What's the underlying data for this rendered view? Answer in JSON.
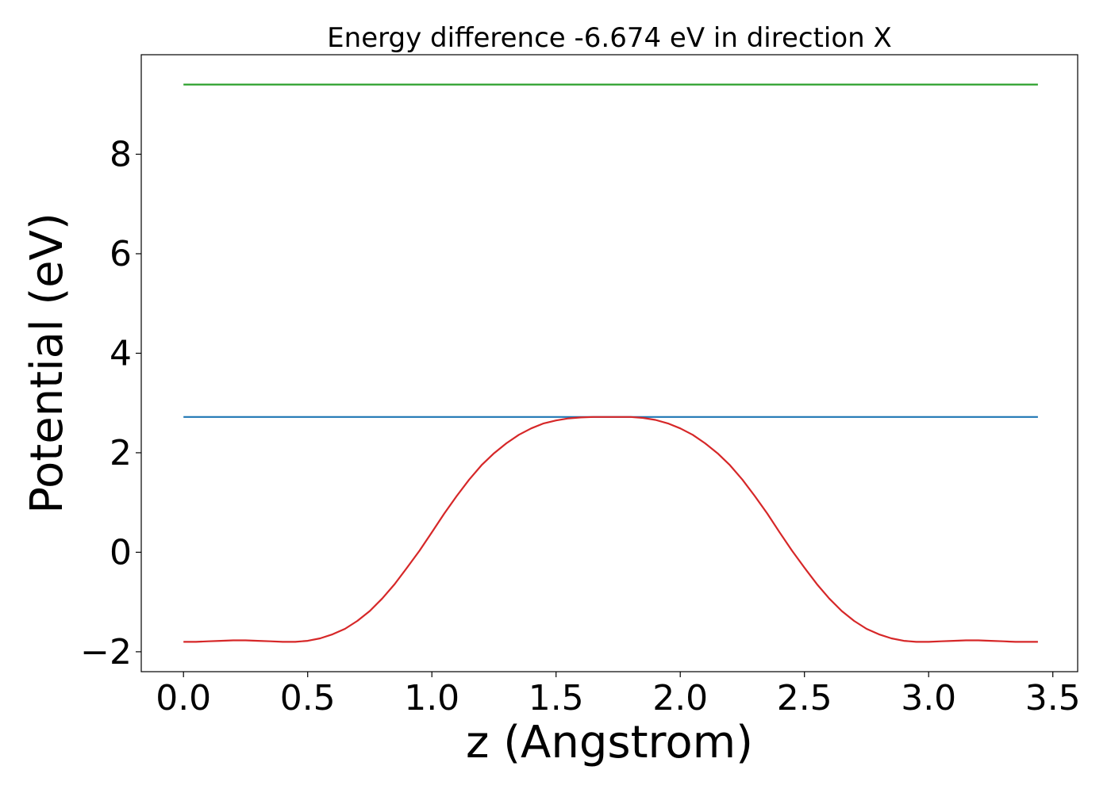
{
  "chart_data": {
    "type": "line",
    "title": "Energy difference -6.674 eV in direction X",
    "xlabel": "z (Angstrom)",
    "ylabel": "Potential (eV)",
    "xlim": [
      -0.17,
      3.6
    ],
    "ylim": [
      -2.4,
      10.0
    ],
    "xticks": [
      0.0,
      0.5,
      1.0,
      1.5,
      2.0,
      2.5,
      3.0,
      3.5
    ],
    "xtick_labels": [
      "0.0",
      "0.5",
      "1.0",
      "1.5",
      "2.0",
      "2.5",
      "3.0",
      "3.5"
    ],
    "yticks": [
      -2,
      0,
      2,
      4,
      6,
      8
    ],
    "ytick_labels": [
      "−2",
      "0",
      "2",
      "4",
      "6",
      "8"
    ],
    "grid": false,
    "series": [
      {
        "color": "#2ca02c",
        "x": [
          0.0,
          3.44
        ],
        "y": [
          9.4,
          9.4
        ]
      },
      {
        "color": "#1f77b4",
        "x": [
          0.0,
          3.44
        ],
        "y": [
          2.72,
          2.72
        ]
      },
      {
        "color": "#d62728",
        "x": [
          0.0,
          0.05,
          0.1,
          0.15,
          0.2,
          0.25,
          0.3,
          0.35,
          0.4,
          0.45,
          0.5,
          0.55,
          0.6,
          0.65,
          0.7,
          0.75,
          0.8,
          0.85,
          0.9,
          0.95,
          1.0,
          1.05,
          1.1,
          1.15,
          1.2,
          1.25,
          1.3,
          1.35,
          1.4,
          1.45,
          1.5,
          1.55,
          1.6,
          1.65,
          1.7,
          1.75,
          1.8,
          1.85,
          1.9,
          1.95,
          2.0,
          2.05,
          2.1,
          2.15,
          2.2,
          2.25,
          2.3,
          2.35,
          2.4,
          2.45,
          2.5,
          2.55,
          2.6,
          2.65,
          2.7,
          2.75,
          2.8,
          2.85,
          2.9,
          2.95,
          3.0,
          3.05,
          3.1,
          3.15,
          3.2,
          3.25,
          3.3,
          3.35,
          3.4,
          3.44
        ],
        "y": [
          -1.8,
          -1.8,
          -1.79,
          -1.78,
          -1.77,
          -1.77,
          -1.78,
          -1.79,
          -1.8,
          -1.8,
          -1.78,
          -1.73,
          -1.65,
          -1.54,
          -1.38,
          -1.18,
          -0.93,
          -0.64,
          -0.31,
          0.03,
          0.4,
          0.78,
          1.13,
          1.46,
          1.75,
          1.99,
          2.19,
          2.36,
          2.49,
          2.59,
          2.65,
          2.69,
          2.71,
          2.72,
          2.72,
          2.72,
          2.72,
          2.7,
          2.66,
          2.59,
          2.49,
          2.36,
          2.19,
          1.99,
          1.75,
          1.46,
          1.13,
          0.78,
          0.4,
          0.03,
          -0.31,
          -0.64,
          -0.93,
          -1.18,
          -1.38,
          -1.54,
          -1.65,
          -1.73,
          -1.78,
          -1.8,
          -1.8,
          -1.79,
          -1.78,
          -1.77,
          -1.77,
          -1.78,
          -1.79,
          -1.8,
          -1.8,
          -1.8
        ]
      }
    ]
  }
}
